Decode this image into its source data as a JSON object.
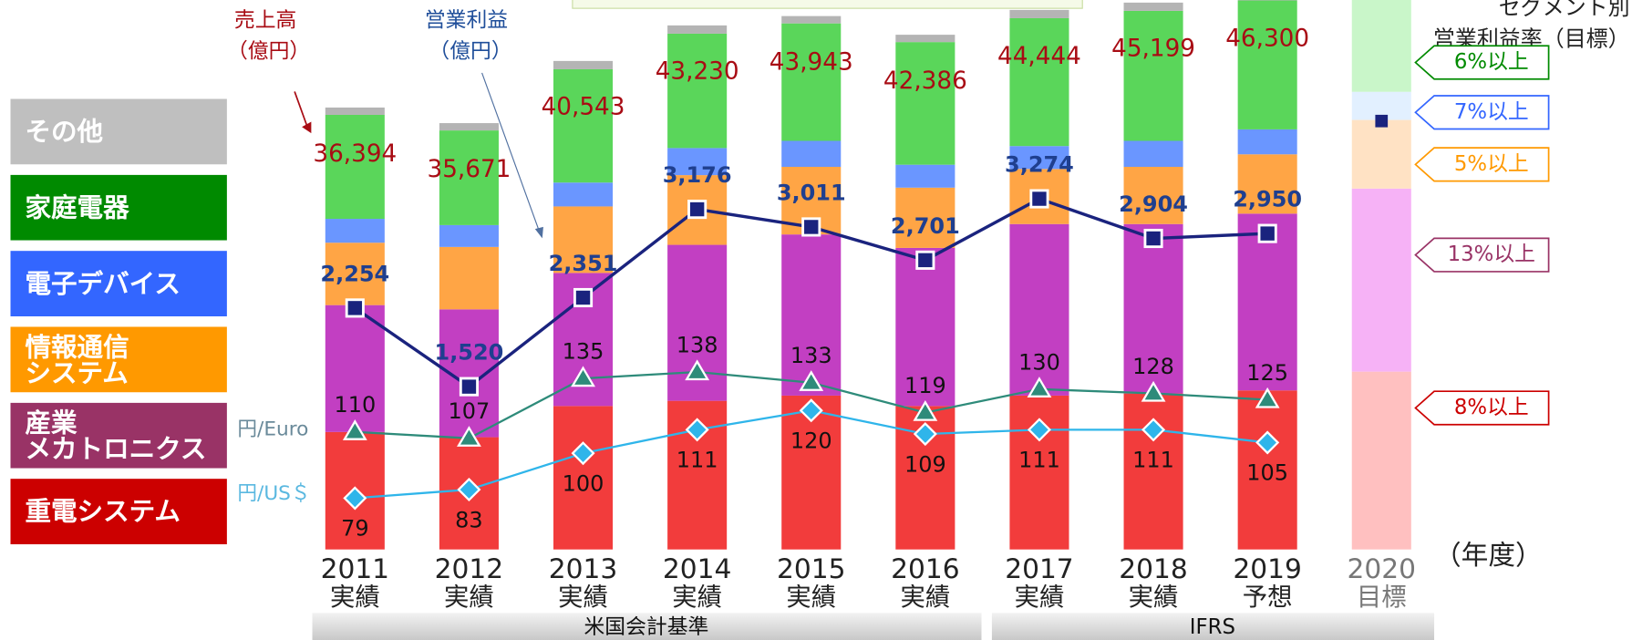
{
  "chart_data": {
    "type": "stacked_bar_line",
    "sales_label": [
      "売上高",
      "（億円）"
    ],
    "profit_label": [
      "営業利益",
      "（億円）"
    ],
    "segment_margin_title": [
      "セグメント別",
      "営業利益率（目標）"
    ],
    "year_unit": "（年度）",
    "accounting_bands": [
      "米国会計基準",
      "IFRS"
    ],
    "categories": [
      "2011",
      "2012",
      "2013",
      "2014",
      "2015",
      "2016",
      "2017",
      "2018",
      "2019"
    ],
    "category_notes": [
      "実績",
      "実績",
      "実績",
      "実績",
      "実績",
      "実績",
      "実績",
      "実績",
      "予想"
    ],
    "ylim": [
      0,
      46500
    ],
    "series": [
      {
        "name": "重電システム",
        "color": "#f23c3c",
        "legend_color": "#cc0000",
        "values": [
          9940,
          9500,
          12140,
          12580,
          13020,
          12140,
          13020,
          13200,
          13460
        ]
      },
      {
        "name": "産業\nメカトロニクス",
        "color": "#c23fc2",
        "legend_color": "#993366",
        "values": [
          10740,
          10820,
          11260,
          13200,
          13640,
          13380,
          14520,
          14340,
          14960
        ]
      },
      {
        "name": "情報通信\nシステム",
        "color": "#ffa545",
        "legend_color": "#ff9900",
        "values": [
          5280,
          5280,
          5630,
          5900,
          5720,
          5100,
          4660,
          4840,
          5020
        ]
      },
      {
        "name": "電子デバイス",
        "color": "#6a96ff",
        "legend_color": "#3366ff",
        "values": [
          2020,
          1850,
          2020,
          2290,
          2200,
          1940,
          1940,
          2200,
          2110
        ]
      },
      {
        "name": "家庭電器",
        "color": "#5ad65a",
        "legend_color": "#008a00",
        "values": [
          8800,
          8010,
          9590,
          9680,
          9940,
          10380,
          10820,
          11000,
          10910
        ]
      },
      {
        "name": "その他",
        "color": "#b4b4b4",
        "legend_color": "#bfbfbf",
        "values": [
          620,
          620,
          700,
          700,
          620,
          620,
          700,
          700,
          700
        ]
      }
    ],
    "totals": {
      "color": "#a80c14",
      "values": [
        36394,
        35671,
        40543,
        43230,
        43943,
        42386,
        44444,
        45199,
        46300
      ],
      "value_labels": [
        "36,394",
        "35,671",
        "40,543",
        "43,230",
        "43,943",
        "42,386",
        "44,444",
        "45,199",
        "46,300"
      ]
    },
    "y2lim": [
      0,
      5130
    ],
    "profit": {
      "axis": "y2",
      "color": "#1a237e",
      "label_color": "#1f3f8f",
      "values": [
        2254,
        1520,
        2351,
        3176,
        3011,
        2701,
        3274,
        2904,
        2950
      ],
      "value_labels": [
        "2,254",
        "1,520",
        "2,351",
        "3,176",
        "3,011",
        "2,701",
        "3,274",
        "2,904",
        "2,950"
      ]
    },
    "y3lim": [
      55,
      312
    ],
    "rates": [
      {
        "name": "円/Euro",
        "color": "#2e8b7a",
        "name_color": "#6a8a9a",
        "marker": "triangle",
        "values": [
          110,
          107,
          135,
          138,
          133,
          119,
          130,
          128,
          125
        ]
      },
      {
        "name": "円/US＄",
        "color": "#2fb5ea",
        "name_color": "#5ab8e0",
        "marker": "diamond",
        "values": [
          79,
          83,
          100,
          111,
          120,
          109,
          111,
          111,
          105
        ]
      }
    ],
    "target": {
      "category": "2020",
      "note": "目標",
      "values": [
        15050,
        15490,
        5810,
        2380,
        8360
      ],
      "colors": [
        "#ffc0c0",
        "#f6b2f6",
        "#ffe2c4",
        "#e2f0ff",
        "#c9f6c9"
      ],
      "margin_labels": [
        "8%以上",
        "13%以上",
        "5%以上",
        "7%以上",
        "6%以上"
      ],
      "profit": 4000
    }
  }
}
